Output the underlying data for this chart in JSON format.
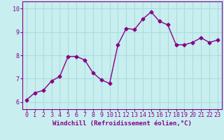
{
  "x": [
    0,
    1,
    2,
    3,
    4,
    5,
    6,
    7,
    8,
    9,
    10,
    11,
    12,
    13,
    14,
    15,
    16,
    17,
    18,
    19,
    20,
    21,
    22,
    23
  ],
  "y": [
    6.1,
    6.4,
    6.5,
    6.9,
    7.1,
    7.95,
    7.95,
    7.8,
    7.25,
    6.95,
    6.8,
    8.45,
    9.15,
    9.1,
    9.55,
    9.85,
    9.45,
    9.3,
    8.45,
    8.45,
    8.55,
    8.75,
    8.55,
    8.65
  ],
  "line_color": "#880088",
  "marker": "D",
  "marker_size": 2.5,
  "bg_color": "#c8eef0",
  "grid_color": "#aadddd",
  "xlabel": "Windchill (Refroidissement éolien,°C)",
  "xlim": [
    -0.5,
    23.5
  ],
  "ylim": [
    5.7,
    10.3
  ],
  "yticks": [
    6,
    7,
    8,
    9,
    10
  ],
  "xticks": [
    0,
    1,
    2,
    3,
    4,
    5,
    6,
    7,
    8,
    9,
    10,
    11,
    12,
    13,
    14,
    15,
    16,
    17,
    18,
    19,
    20,
    21,
    22,
    23
  ],
  "xlabel_color": "#880088",
  "tick_color": "#880088",
  "spine_color": "#880088",
  "font_size_xlabel": 6.5,
  "font_size_tick": 6.0,
  "linewidth": 1.0
}
